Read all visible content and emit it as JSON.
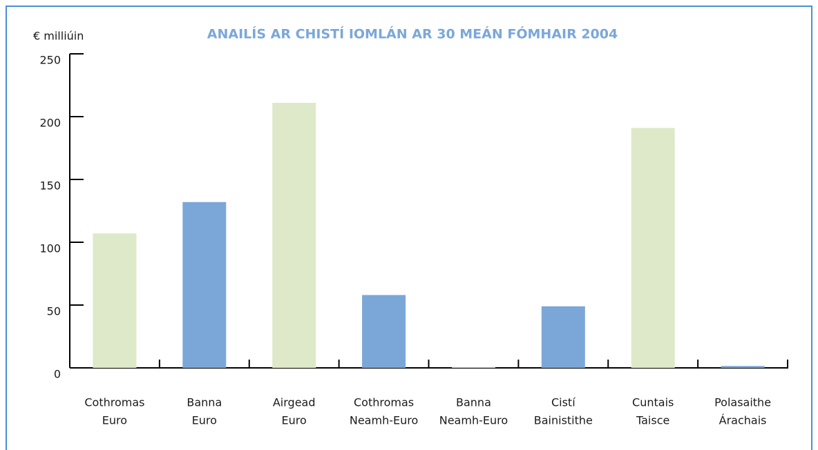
{
  "chart_data": {
    "type": "bar",
    "title": "ANAILÍS AR CHISTÍ IOMLÁN AR 30 MEÁN FÓMHAIR 2004",
    "y_label": "€ milliúin",
    "categories": [
      [
        "Cothromas",
        "Euro"
      ],
      [
        "Banna",
        "Euro"
      ],
      [
        "Airgead",
        "Euro"
      ],
      [
        "Cothromas",
        "Neamh-Euro"
      ],
      [
        "Banna",
        "Neamh-Euro"
      ],
      [
        "Cistí",
        "Bainistithe"
      ],
      [
        "Cuntais",
        "Taisce"
      ],
      [
        "Polasaithe",
        "Árachais"
      ]
    ],
    "values": [
      107,
      132,
      211,
      58,
      0.5,
      49,
      191,
      1.5
    ],
    "colors": [
      "#dde9c8",
      "#7ba7d8",
      "#dde9c8",
      "#7ba7d8",
      "#dde9c8",
      "#7ba7d8",
      "#dde9c8",
      "#7ba7d8"
    ],
    "ylim": [
      0,
      250
    ],
    "yticks": [
      0,
      50,
      100,
      150,
      200,
      250
    ],
    "grid": false
  }
}
